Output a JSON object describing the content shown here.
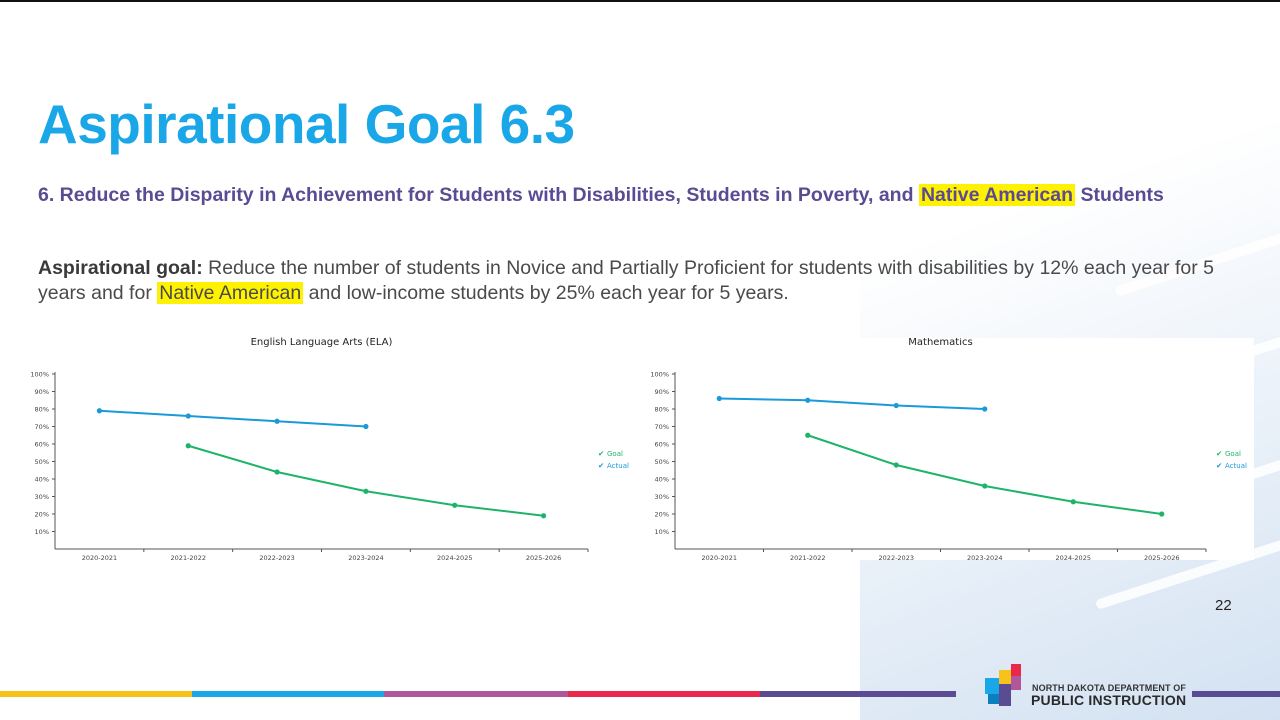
{
  "slide": {
    "title": "Aspirational Goal 6.3",
    "subtitle_pre": "6. Reduce the Disparity in Achievement for Students with Disabilities, Students in Poverty, and ",
    "subtitle_highlight": "Native American",
    "subtitle_post": " Students",
    "goal_label": "Aspirational goal:",
    "goal_pre": " Reduce the number of students in Novice and Partially Proficient for students with disabilities by 12% each year for 5 years and for ",
    "goal_highlight": "Native American",
    "goal_post": " and low-income students by 25% each year for 5 years.",
    "page_number": "22",
    "logo_line1": "NORTH DAKOTA DEPARTMENT OF",
    "logo_line2": "PUBLIC INSTRUCTION",
    "colors": {
      "title": "#1aa7e8",
      "subtitle": "#5a4b93",
      "highlight": "#fff200",
      "goal_series": "#1db46a",
      "actual_series": "#1a9ad9",
      "bar_segments": [
        "#f7c31a",
        "#1aa7e8",
        "#b0579c",
        "#e8294b",
        "#5a4b93"
      ]
    }
  },
  "chart_data": [
    {
      "type": "line",
      "title": "English Language Arts (ELA)",
      "categories": [
        "2020-2021",
        "2021-2022",
        "2022-2023",
        "2023-2024",
        "2024-2025",
        "2025-2026"
      ],
      "ylim": [
        0,
        100
      ],
      "yticks": [
        "10%",
        "20%",
        "30%",
        "40%",
        "50%",
        "60%",
        "70%",
        "80%",
        "90%",
        "100%"
      ],
      "legend_position": "right",
      "series": [
        {
          "name": "Goal",
          "color": "#1db46a",
          "values": [
            null,
            59,
            44,
            33,
            25,
            19
          ]
        },
        {
          "name": "Actual",
          "color": "#1a9ad9",
          "values": [
            79,
            76,
            73,
            70,
            null,
            null
          ]
        }
      ]
    },
    {
      "type": "line",
      "title": "Mathematics",
      "categories": [
        "2020-2021",
        "2021-2022",
        "2022-2023",
        "2023-2024",
        "2024-2025",
        "2025-2026"
      ],
      "ylim": [
        0,
        100
      ],
      "yticks": [
        "10%",
        "20%",
        "30%",
        "40%",
        "50%",
        "60%",
        "70%",
        "80%",
        "90%",
        "100%"
      ],
      "legend_position": "right",
      "series": [
        {
          "name": "Goal",
          "color": "#1db46a",
          "values": [
            null,
            65,
            48,
            36,
            27,
            20
          ]
        },
        {
          "name": "Actual",
          "color": "#1a9ad9",
          "values": [
            86,
            85,
            82,
            80,
            null,
            null
          ]
        }
      ]
    }
  ]
}
